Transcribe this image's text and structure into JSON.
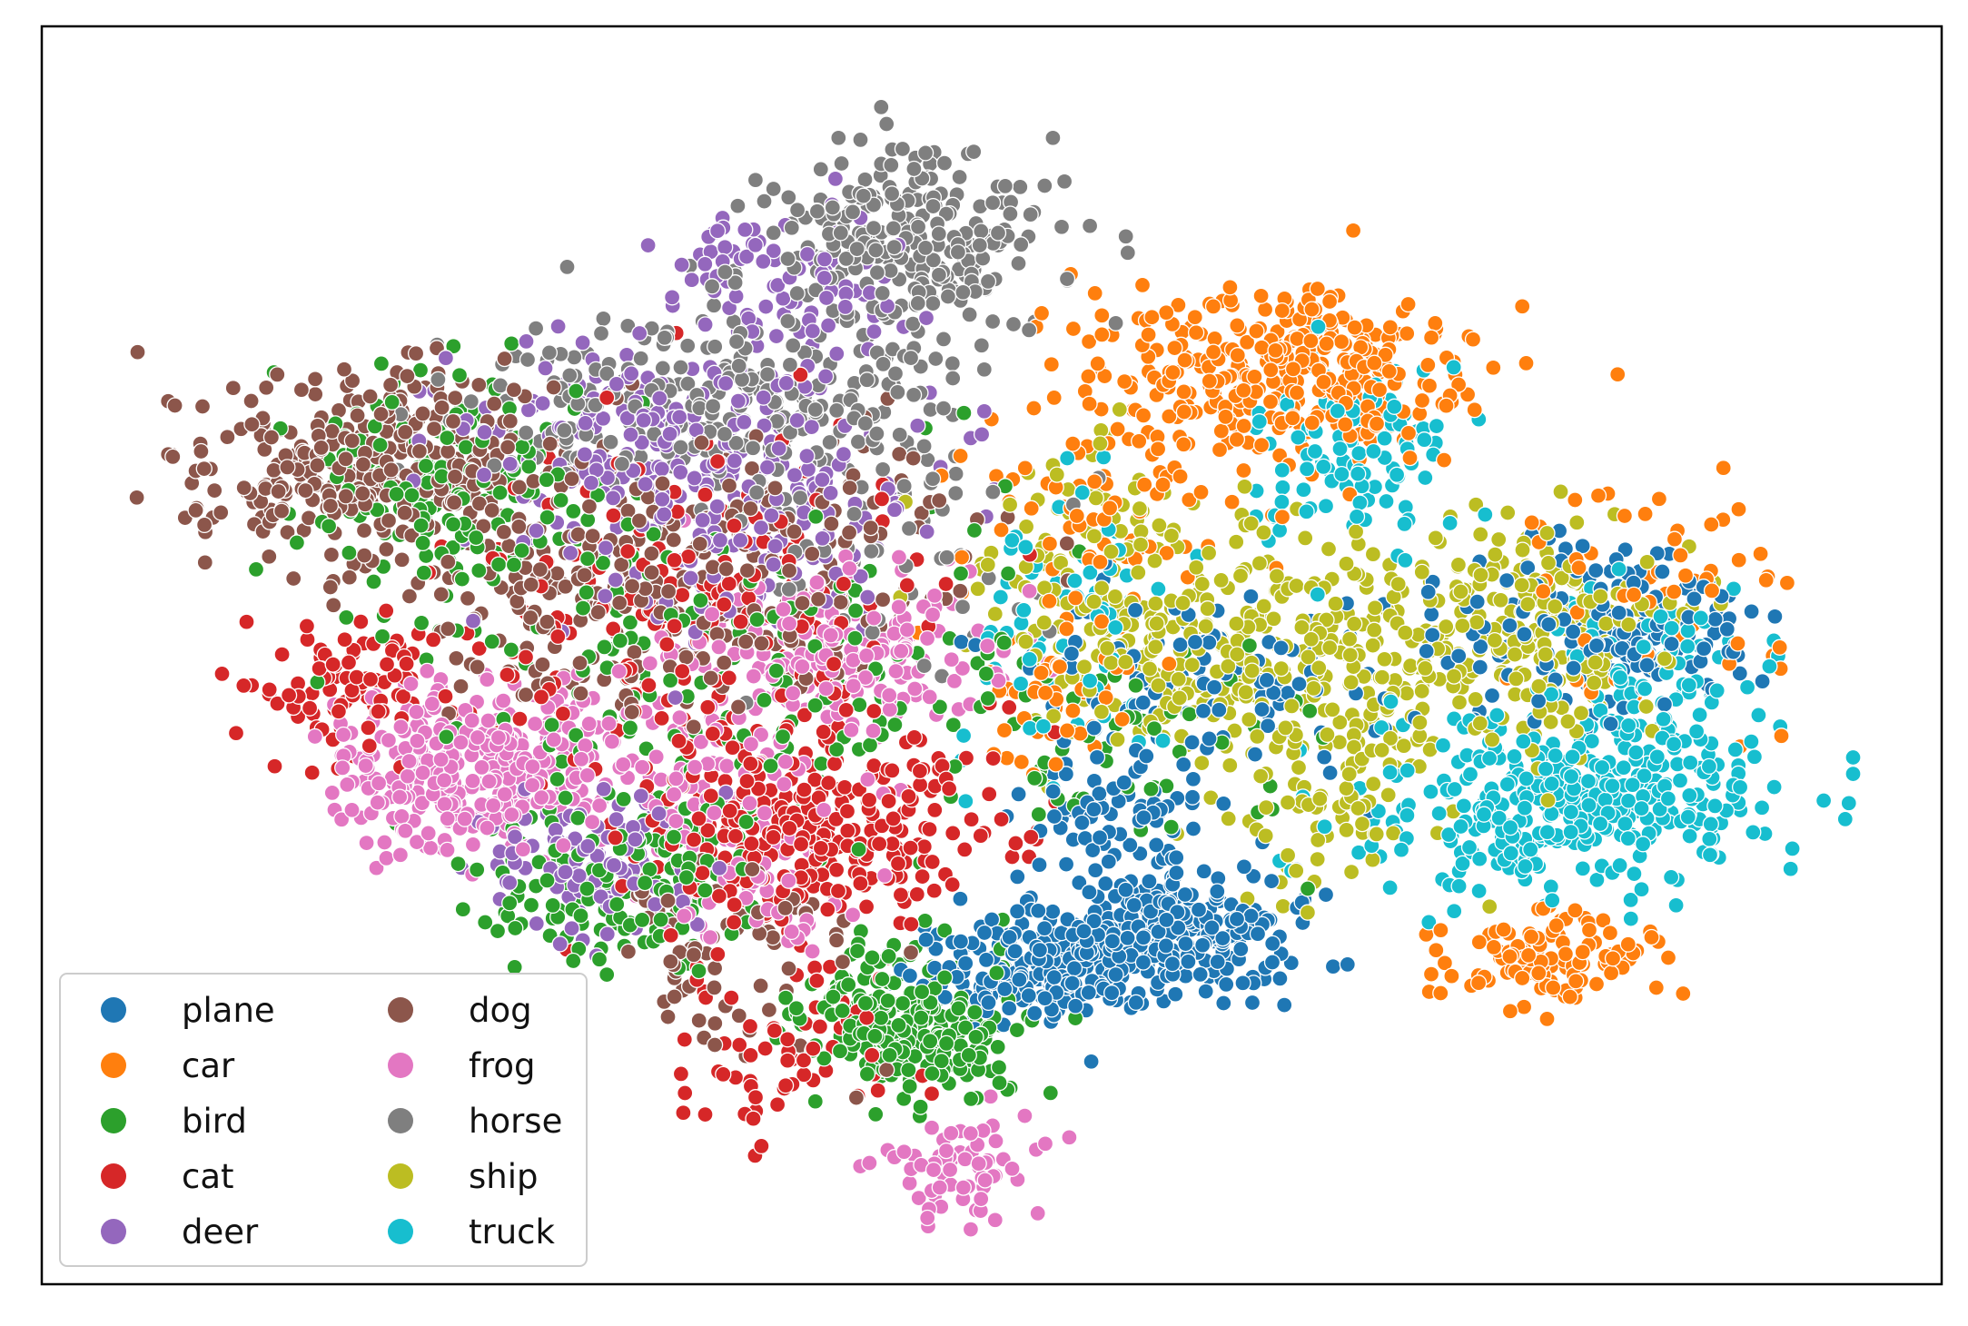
{
  "chart_data": {
    "type": "scatter",
    "title": "",
    "xlabel": "",
    "ylabel": "",
    "axes_ticks_visible": false,
    "grid": false,
    "xlim": [
      0,
      100
    ],
    "ylim": [
      0,
      100
    ],
    "legend": {
      "placement": "lower-left",
      "columns": 2
    },
    "series": [
      {
        "name": "plane",
        "color": "#1f77b4",
        "clusters": [
          {
            "x": 60,
            "y": 26,
            "sx": 3.6,
            "sy": 2.6,
            "n": 320
          },
          {
            "x": 52,
            "y": 23,
            "sx": 3.0,
            "sy": 2.4,
            "n": 170
          },
          {
            "x": 85,
            "y": 52,
            "sx": 4.5,
            "sy": 3.5,
            "n": 180
          },
          {
            "x": 62,
            "y": 47,
            "sx": 6.0,
            "sy": 4.5,
            "n": 110
          },
          {
            "x": 57,
            "y": 36,
            "sx": 3.0,
            "sy": 3.0,
            "n": 70
          }
        ]
      },
      {
        "name": "car",
        "color": "#ff7f0e",
        "clusters": [
          {
            "x": 67,
            "y": 74,
            "sx": 5.0,
            "sy": 4.2,
            "n": 360
          },
          {
            "x": 82,
            "y": 24,
            "sx": 2.8,
            "sy": 2.0,
            "n": 120
          },
          {
            "x": 56,
            "y": 64,
            "sx": 4.0,
            "sy": 6.0,
            "n": 90
          },
          {
            "x": 88,
            "y": 55,
            "sx": 4.5,
            "sy": 5.0,
            "n": 60
          },
          {
            "x": 53,
            "y": 47,
            "sx": 2.5,
            "sy": 3.0,
            "n": 45
          }
        ]
      },
      {
        "name": "bird",
        "color": "#2ca02c",
        "clusters": [
          {
            "x": 45,
            "y": 18,
            "sx": 3.0,
            "sy": 3.0,
            "n": 280
          },
          {
            "x": 18,
            "y": 64,
            "sx": 4.5,
            "sy": 5.5,
            "n": 170
          },
          {
            "x": 29,
            "y": 30,
            "sx": 4.0,
            "sy": 3.5,
            "n": 150
          },
          {
            "x": 36,
            "y": 48,
            "sx": 8.0,
            "sy": 9.0,
            "n": 170
          },
          {
            "x": 57,
            "y": 42,
            "sx": 6.0,
            "sy": 6.0,
            "n": 60
          }
        ]
      },
      {
        "name": "cat",
        "color": "#d62728",
        "clusters": [
          {
            "x": 40,
            "y": 35,
            "sx": 5.0,
            "sy": 4.5,
            "n": 330
          },
          {
            "x": 13,
            "y": 47,
            "sx": 3.0,
            "sy": 3.0,
            "n": 90
          },
          {
            "x": 33,
            "y": 54,
            "sx": 8.0,
            "sy": 8.0,
            "n": 200
          },
          {
            "x": 38,
            "y": 15,
            "sx": 4.0,
            "sy": 3.0,
            "n": 60
          }
        ]
      },
      {
        "name": "deer",
        "color": "#9467bd",
        "clusters": [
          {
            "x": 35,
            "y": 65,
            "sx": 6.0,
            "sy": 6.5,
            "n": 240
          },
          {
            "x": 38,
            "y": 82,
            "sx": 4.0,
            "sy": 3.5,
            "n": 90
          },
          {
            "x": 27,
            "y": 32,
            "sx": 3.0,
            "sy": 3.5,
            "n": 110
          },
          {
            "x": 28,
            "y": 68,
            "sx": 5.0,
            "sy": 4.5,
            "n": 90
          }
        ]
      },
      {
        "name": "dog",
        "color": "#8c564b",
        "clusters": [
          {
            "x": 14,
            "y": 66,
            "sx": 5.5,
            "sy": 4.5,
            "n": 330
          },
          {
            "x": 27,
            "y": 55,
            "sx": 5.0,
            "sy": 5.5,
            "n": 180
          },
          {
            "x": 38,
            "y": 58,
            "sx": 6.0,
            "sy": 6.0,
            "n": 130
          },
          {
            "x": 35,
            "y": 24,
            "sx": 4.0,
            "sy": 4.5,
            "n": 70
          }
        ]
      },
      {
        "name": "frog",
        "color": "#e377c2",
        "clusters": [
          {
            "x": 20,
            "y": 40,
            "sx": 4.0,
            "sy": 3.8,
            "n": 330
          },
          {
            "x": 41,
            "y": 50,
            "sx": 5.0,
            "sy": 3.5,
            "n": 200
          },
          {
            "x": 33,
            "y": 39,
            "sx": 4.0,
            "sy": 3.0,
            "n": 90
          },
          {
            "x": 48,
            "y": 6,
            "sx": 2.5,
            "sy": 2.0,
            "n": 70
          },
          {
            "x": 37,
            "y": 29,
            "sx": 3.5,
            "sy": 3.0,
            "n": 50
          }
        ]
      },
      {
        "name": "horse",
        "color": "#7f7f7f",
        "clusters": [
          {
            "x": 45,
            "y": 86,
            "sx": 4.0,
            "sy": 4.5,
            "n": 260
          },
          {
            "x": 37,
            "y": 72,
            "sx": 6.0,
            "sy": 4.0,
            "n": 190
          },
          {
            "x": 28,
            "y": 72,
            "sx": 6.0,
            "sy": 4.0,
            "n": 90
          },
          {
            "x": 44,
            "y": 58,
            "sx": 6.0,
            "sy": 6.0,
            "n": 50
          }
        ]
      },
      {
        "name": "ship",
        "color": "#bcbd22",
        "clusters": [
          {
            "x": 65,
            "y": 50,
            "sx": 6.5,
            "sy": 5.0,
            "n": 330
          },
          {
            "x": 81,
            "y": 52,
            "sx": 4.5,
            "sy": 4.5,
            "n": 220
          },
          {
            "x": 56,
            "y": 59,
            "sx": 3.5,
            "sy": 5.0,
            "n": 90
          },
          {
            "x": 69,
            "y": 37,
            "sx": 3.0,
            "sy": 3.5,
            "n": 70
          }
        ]
      },
      {
        "name": "truck",
        "color": "#17becf",
        "clusters": [
          {
            "x": 83,
            "y": 37,
            "sx": 6.0,
            "sy": 3.8,
            "n": 360
          },
          {
            "x": 71,
            "y": 67,
            "sx": 3.0,
            "sy": 4.5,
            "n": 110
          },
          {
            "x": 88,
            "y": 47,
            "sx": 3.5,
            "sy": 4.5,
            "n": 100
          },
          {
            "x": 54,
            "y": 52,
            "sx": 3.0,
            "sy": 6.0,
            "n": 70
          }
        ]
      }
    ]
  }
}
